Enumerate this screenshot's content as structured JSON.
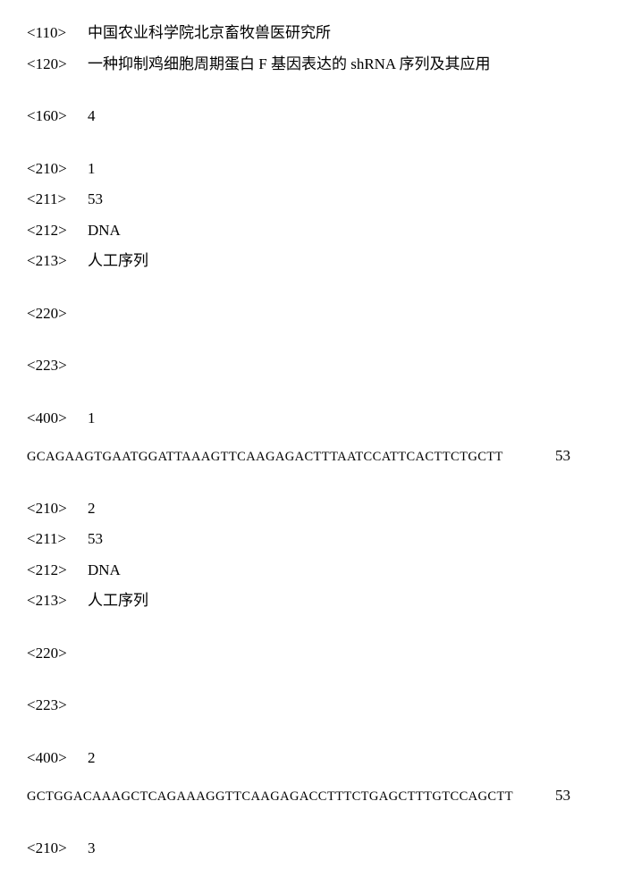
{
  "header": {
    "applicant_tag": "<110>",
    "applicant": "中国农业科学院北京畜牧兽医研究所",
    "title_tag": "<120>",
    "title": "一种抑制鸡细胞周期蛋白 F 基因表达的 shRNA 序列及其应用",
    "count_tag": "<160>",
    "count": "4"
  },
  "seq1": {
    "id_tag": "<210>",
    "id": "1",
    "len_tag": "<211>",
    "len": "53",
    "type_tag": "<212>",
    "type": "DNA",
    "organism_tag": "<213>",
    "organism": "人工序列",
    "feature_tag": "<220>",
    "feature": "",
    "other_tag": "<223>",
    "other": "",
    "seq_tag": "<400>",
    "seq_id": "1",
    "sequence": "GCAGAAGTGAATGGATTAAAGTTCAAGAGACTTTAATCCATTCACTTCTGCTT",
    "seq_length": "53"
  },
  "seq2": {
    "id_tag": "<210>",
    "id": "2",
    "len_tag": "<211>",
    "len": "53",
    "type_tag": "<212>",
    "type": "DNA",
    "organism_tag": "<213>",
    "organism": "人工序列",
    "feature_tag": "<220>",
    "feature": "",
    "other_tag": "<223>",
    "other": "",
    "seq_tag": "<400>",
    "seq_id": "2",
    "sequence": "GCTGGACAAAGCTCAGAAAGGTTCAAGAGACCTTTCTGAGCTTTGTCCAGCTT",
    "seq_length": "53"
  },
  "seq3": {
    "id_tag": "<210>",
    "id": "3"
  }
}
